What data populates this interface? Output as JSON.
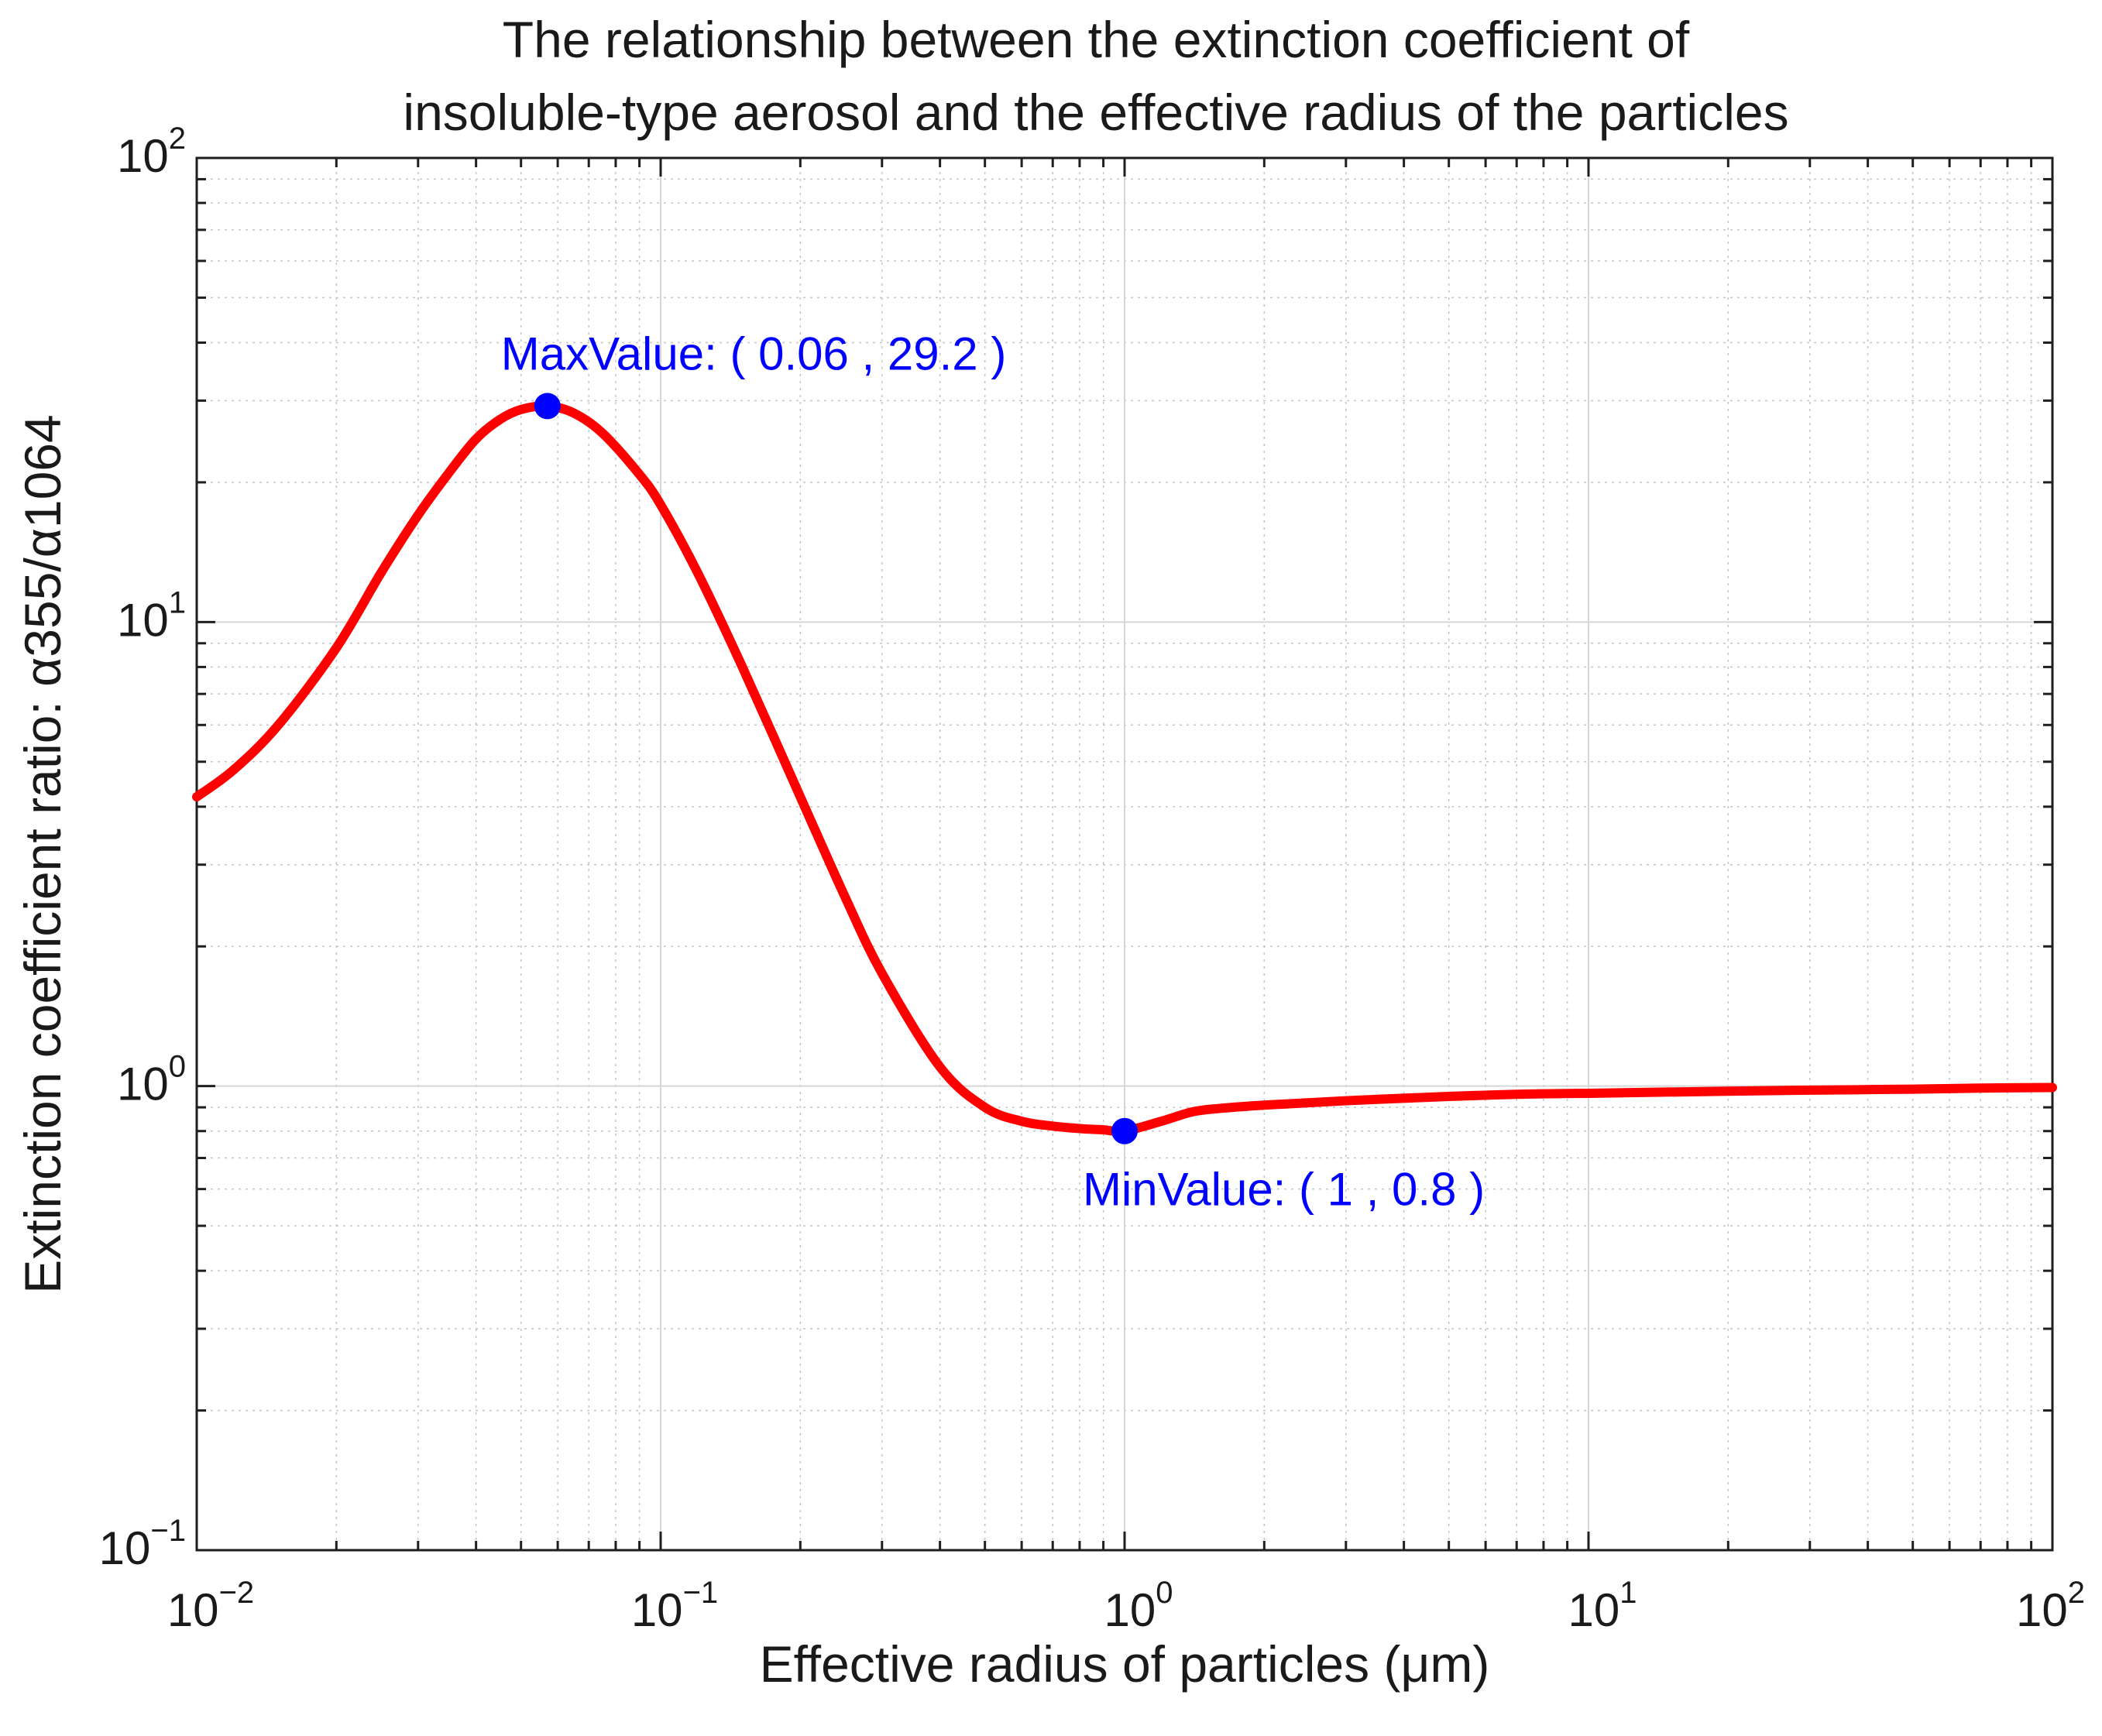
{
  "chart_data": {
    "type": "line",
    "title_line1": "The relationship between the extinction coefficient of",
    "title_line2": "insoluble-type aerosol and the effective radius of the particles",
    "xlabel": "Effective radius of particles (μm)",
    "ylabel": "Extinction coefficient ratio:  α355/α1064",
    "xscale": "log",
    "yscale": "log",
    "xlim": [
      0.01,
      100
    ],
    "ylim": [
      0.1,
      100
    ],
    "grid": true,
    "x_ticks": [
      {
        "base": "10",
        "exp": "−2",
        "value": 0.01
      },
      {
        "base": "10",
        "exp": "−1",
        "value": 0.1
      },
      {
        "base": "10",
        "exp": "0",
        "value": 1
      },
      {
        "base": "10",
        "exp": "1",
        "value": 10
      },
      {
        "base": "10",
        "exp": "2",
        "value": 100
      }
    ],
    "y_ticks": [
      {
        "base": "10",
        "exp": "−1",
        "value": 0.1
      },
      {
        "base": "10",
        "exp": "0",
        "value": 1
      },
      {
        "base": "10",
        "exp": "1",
        "value": 10
      },
      {
        "base": "10",
        "exp": "2",
        "value": 100
      }
    ],
    "series": [
      {
        "name": "insoluble-type aerosol",
        "color": "#ff0000",
        "x": [
          0.01,
          0.012,
          0.015,
          0.02,
          0.025,
          0.03,
          0.035,
          0.04,
          0.045,
          0.05,
          0.057,
          0.065,
          0.075,
          0.09,
          0.1,
          0.12,
          0.15,
          0.2,
          0.25,
          0.3,
          0.4,
          0.5,
          0.6,
          0.7,
          0.8,
          0.9,
          1.0,
          1.2,
          1.4,
          1.6,
          2,
          3,
          5,
          7,
          10,
          20,
          30,
          50,
          70,
          100
        ],
        "y": [
          4.2,
          4.8,
          6.0,
          8.8,
          12.8,
          17.0,
          21.0,
          24.8,
          27.3,
          28.7,
          29.2,
          28.2,
          25.5,
          20.8,
          17.9,
          12.8,
          8.0,
          4.2,
          2.55,
          1.75,
          1.1,
          0.9,
          0.84,
          0.82,
          0.81,
          0.805,
          0.8,
          0.84,
          0.88,
          0.895,
          0.91,
          0.93,
          0.95,
          0.96,
          0.965,
          0.975,
          0.98,
          0.985,
          0.99,
          0.993
        ]
      }
    ],
    "markers": [
      {
        "x": 0.057,
        "y": 29.2,
        "label": "MaxValue: ( 0.06 , 29.2 )",
        "color": "#0000ff",
        "label_position": "above"
      },
      {
        "x": 1.0,
        "y": 0.8,
        "label": "MinValue: ( 1 , 0.8 )",
        "color": "#0000ff",
        "label_position": "below-right"
      }
    ]
  }
}
